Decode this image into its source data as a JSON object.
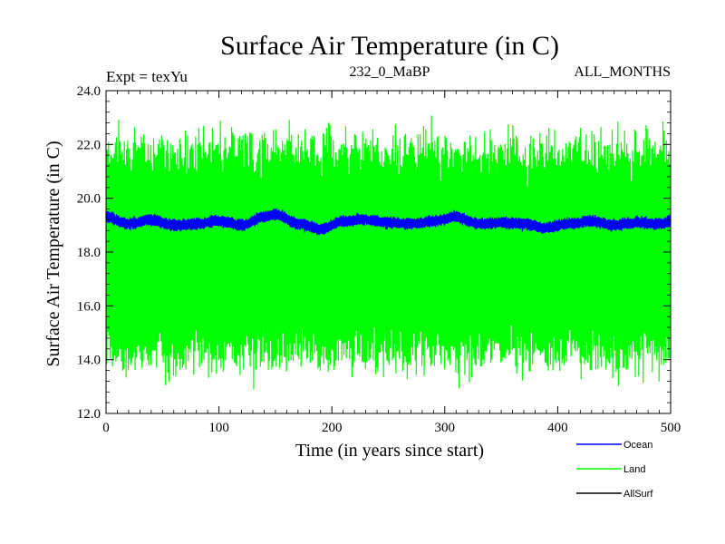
{
  "chart_data": {
    "type": "line",
    "title": "Surface Air Temperature (in C)",
    "subtitle_left": "Expt = texYu",
    "subtitle_center": "232_0_MaBP",
    "subtitle_right": "ALL_MONTHS",
    "xlabel": "Time (in years since start)",
    "ylabel": "Surface Air Temperature (in C)",
    "xlim": [
      0,
      500
    ],
    "ylim": [
      12.0,
      24.0
    ],
    "xticks": [
      0,
      100,
      200,
      300,
      400,
      500
    ],
    "yticks": [
      12.0,
      14.0,
      16.0,
      18.0,
      20.0,
      22.0,
      24.0
    ],
    "xtick_labels": [
      "0",
      "100",
      "200",
      "300",
      "400",
      "500"
    ],
    "ytick_labels": [
      "12.0",
      "14.0",
      "16.0",
      "18.0",
      "20.0",
      "22.0",
      "24.0"
    ],
    "legend_position": "bottom-right, outside plot",
    "series": [
      {
        "name": "Ocean",
        "color": "#0000ff",
        "description_samples": {
          "x": [
            0,
            20,
            40,
            60,
            80,
            100,
            120,
            140,
            150,
            170,
            190,
            210,
            230,
            250,
            270,
            290,
            310,
            330,
            350,
            370,
            390,
            410,
            430,
            450,
            470,
            490,
            500
          ],
          "y": [
            19.3,
            19.05,
            19.2,
            19.0,
            19.05,
            19.15,
            19.0,
            19.3,
            19.4,
            19.05,
            18.85,
            19.15,
            19.2,
            19.1,
            19.05,
            19.15,
            19.3,
            19.05,
            19.1,
            19.05,
            18.9,
            19.05,
            19.15,
            19.0,
            19.1,
            19.05,
            19.15
          ]
        },
        "band_halfwidth": 0.2
      },
      {
        "name": "Land",
        "color": "#00ff00",
        "mean": 18.0,
        "typical_range": [
          14.0,
          22.0
        ],
        "extreme_range": [
          12.9,
          23.2
        ]
      },
      {
        "name": "AllSurf",
        "color": "#000000"
      }
    ]
  }
}
